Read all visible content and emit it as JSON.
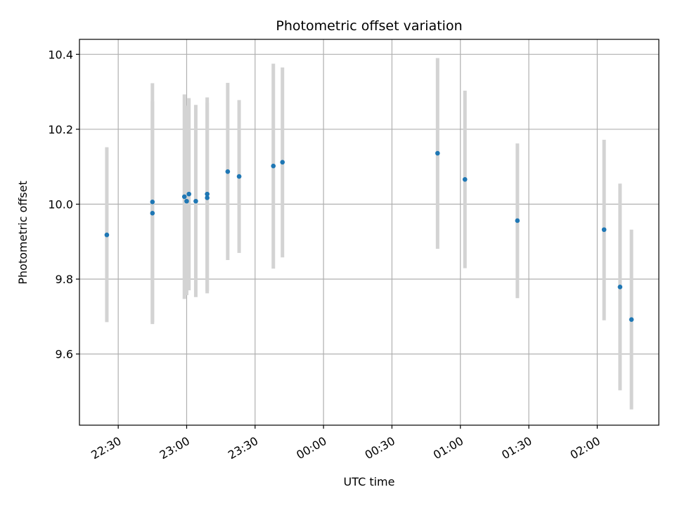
{
  "chart_data": {
    "type": "scatter",
    "title": "Photometric offset variation",
    "xlabel": "UTC time",
    "ylabel": "Photometric offset",
    "xlim": [
      "22:13",
      "02:27"
    ],
    "ylim": [
      9.41,
      10.44
    ],
    "grid": true,
    "x_tick_labels": [
      "22:30",
      "23:00",
      "23:30",
      "00:00",
      "00:30",
      "01:00",
      "01:30",
      "02:00"
    ],
    "y_tick_labels": [
      "9.6",
      "9.8",
      "10.0",
      "10.2",
      "10.4"
    ],
    "colors": {
      "point": "#1f77b4",
      "errorbar": "#d3d3d3",
      "grid": "#b0b0b0"
    },
    "points": [
      {
        "x": "22:25",
        "y": 9.918,
        "ylow": 9.685,
        "yhigh": 10.152
      },
      {
        "x": "22:45",
        "y": 10.006,
        "ylow": 9.685,
        "yhigh": 10.323
      },
      {
        "x": "22:45",
        "y": 9.976,
        "ylow": 9.68,
        "yhigh": 10.275
      },
      {
        "x": "22:59",
        "y": 10.02,
        "ylow": 9.747,
        "yhigh": 10.293
      },
      {
        "x": "23:00",
        "y": 10.008,
        "ylow": 9.757,
        "yhigh": 10.263
      },
      {
        "x": "23:01",
        "y": 10.027,
        "ylow": 9.77,
        "yhigh": 10.283
      },
      {
        "x": "23:04",
        "y": 10.008,
        "ylow": 9.752,
        "yhigh": 10.265
      },
      {
        "x": "23:09",
        "y": 10.017,
        "ylow": 9.762,
        "yhigh": 10.271
      },
      {
        "x": "23:09",
        "y": 10.027,
        "ylow": 9.768,
        "yhigh": 10.285
      },
      {
        "x": "23:18",
        "y": 10.087,
        "ylow": 9.851,
        "yhigh": 10.324
      },
      {
        "x": "23:23",
        "y": 10.074,
        "ylow": 9.87,
        "yhigh": 10.278
      },
      {
        "x": "23:38",
        "y": 10.102,
        "ylow": 9.828,
        "yhigh": 10.375
      },
      {
        "x": "23:42",
        "y": 10.112,
        "ylow": 9.858,
        "yhigh": 10.365
      },
      {
        "x": "00:50",
        "y": 10.136,
        "ylow": 9.881,
        "yhigh": 10.39
      },
      {
        "x": "01:02",
        "y": 10.066,
        "ylow": 9.829,
        "yhigh": 10.303
      },
      {
        "x": "01:25",
        "y": 9.956,
        "ylow": 9.749,
        "yhigh": 10.162
      },
      {
        "x": "02:03",
        "y": 9.932,
        "ylow": 9.69,
        "yhigh": 10.172
      },
      {
        "x": "02:10",
        "y": 9.779,
        "ylow": 9.503,
        "yhigh": 10.055
      },
      {
        "x": "02:15",
        "y": 9.692,
        "ylow": 9.452,
        "yhigh": 9.932
      }
    ]
  }
}
